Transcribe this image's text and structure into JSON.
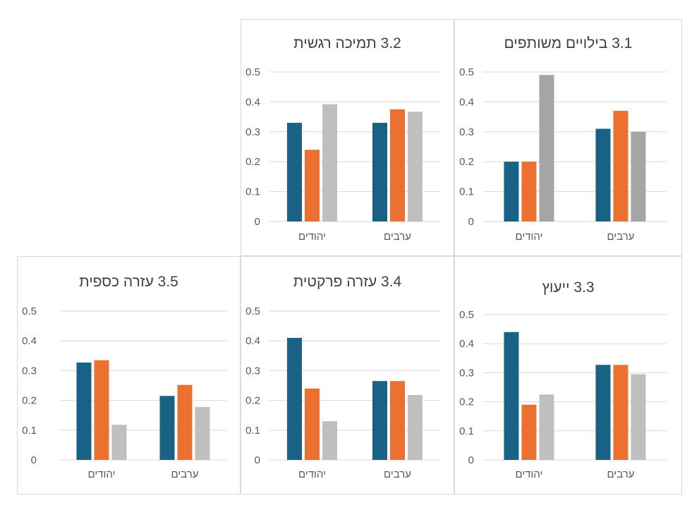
{
  "colors": {
    "series_1": "#1a6285",
    "series_2": "#ec7130",
    "series_3": "#bfbfbf",
    "series_3_panel_3_1": "#a5a5a5",
    "grid": "#d9d9d9",
    "axis_text": "#595959",
    "title_text": "#404040"
  },
  "chart_data": [
    {
      "type": "bar",
      "title": "3.1 בילויים משותפים",
      "categories": [
        "ערבים",
        "יהודים"
      ],
      "series": [
        {
          "values": [
            0.31,
            0.2
          ]
        },
        {
          "values": [
            0.37,
            0.2
          ]
        },
        {
          "values": [
            0.3,
            0.49
          ]
        }
      ],
      "yticks": [
        "0",
        "0.1",
        "0.2",
        "0.3",
        "0.4",
        "0.5"
      ],
      "ylim": [
        0,
        0.5
      ],
      "grid": true,
      "legend": "none"
    },
    {
      "type": "bar",
      "title": "3.2 תמיכה רגשית",
      "categories": [
        "ערבים",
        "יהודים"
      ],
      "series": [
        {
          "values": [
            0.33,
            0.33
          ]
        },
        {
          "values": [
            0.375,
            0.24
          ]
        },
        {
          "values": [
            0.367,
            0.392
          ]
        }
      ],
      "yticks": [
        "0",
        "0.1",
        "0.2",
        "0.3",
        "0.4",
        "0.5"
      ],
      "ylim": [
        0,
        0.5
      ],
      "grid": true,
      "legend": "none"
    },
    {
      "type": "bar",
      "title": "3.3 ייעוץ",
      "categories": [
        "ערבים",
        "יהודים"
      ],
      "series": [
        {
          "values": [
            0.327,
            0.44
          ]
        },
        {
          "values": [
            0.327,
            0.19
          ]
        },
        {
          "values": [
            0.295,
            0.225
          ]
        }
      ],
      "yticks": [
        "0",
        "0.1",
        "0.2",
        "0.3",
        "0.4",
        "0.5"
      ],
      "ylim": [
        0,
        0.5
      ],
      "grid": true,
      "legend": "none"
    },
    {
      "type": "bar",
      "title": "3.4 עזרה פרקטית",
      "categories": [
        "ערבים",
        "יהודים"
      ],
      "series": [
        {
          "values": [
            0.265,
            0.41
          ]
        },
        {
          "values": [
            0.265,
            0.24
          ]
        },
        {
          "values": [
            0.218,
            0.13
          ]
        }
      ],
      "yticks": [
        "0",
        "0.1",
        "0.2",
        "0.3",
        "0.4",
        "0.5"
      ],
      "ylim": [
        0,
        0.5
      ],
      "grid": true,
      "legend": "none"
    },
    {
      "type": "bar",
      "title": "3.5 עזרה כספית",
      "categories": [
        "ערבים",
        "יהודים"
      ],
      "series": [
        {
          "values": [
            0.215,
            0.327
          ]
        },
        {
          "values": [
            0.252,
            0.335
          ]
        },
        {
          "values": [
            0.178,
            0.118
          ]
        }
      ],
      "yticks": [
        "0",
        "0.1",
        "0.2",
        "0.3",
        "0.4",
        "0.5"
      ],
      "ylim": [
        0,
        0.5
      ],
      "grid": true,
      "legend": "none"
    }
  ]
}
